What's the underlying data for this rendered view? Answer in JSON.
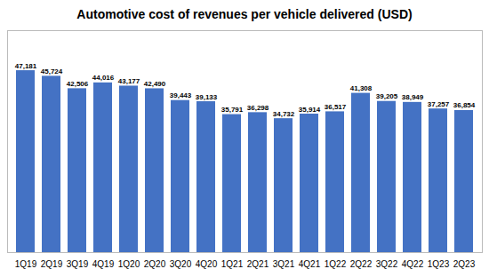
{
  "chart_data": {
    "type": "bar",
    "title": "Automotive cost of revenues per vehicle delivered (USD)",
    "categories": [
      "1Q19",
      "2Q19",
      "3Q19",
      "4Q19",
      "1Q20",
      "2Q20",
      "3Q20",
      "4Q20",
      "1Q21",
      "2Q21",
      "3Q21",
      "4Q21",
      "1Q22",
      "2Q22",
      "3Q22",
      "4Q22",
      "1Q23",
      "2Q23"
    ],
    "values": [
      47181,
      45724,
      42506,
      44016,
      43177,
      42490,
      39443,
      39133,
      35791,
      36298,
      34732,
      35914,
      36517,
      41308,
      39205,
      38949,
      37257,
      36854
    ],
    "value_labels": [
      "47,181",
      "45,724",
      "42,506",
      "44,016",
      "43,177",
      "42,490",
      "39,443",
      "39,133",
      "35,791",
      "36,298",
      "34,732",
      "35,914",
      "36,517",
      "41,308",
      "39,205",
      "38,949",
      "37,257",
      "36,854"
    ],
    "color": "#4472C4",
    "ylim": [
      0,
      57560.82
    ],
    "data_labels": true,
    "tick_labels": "x",
    "grid": false
  }
}
